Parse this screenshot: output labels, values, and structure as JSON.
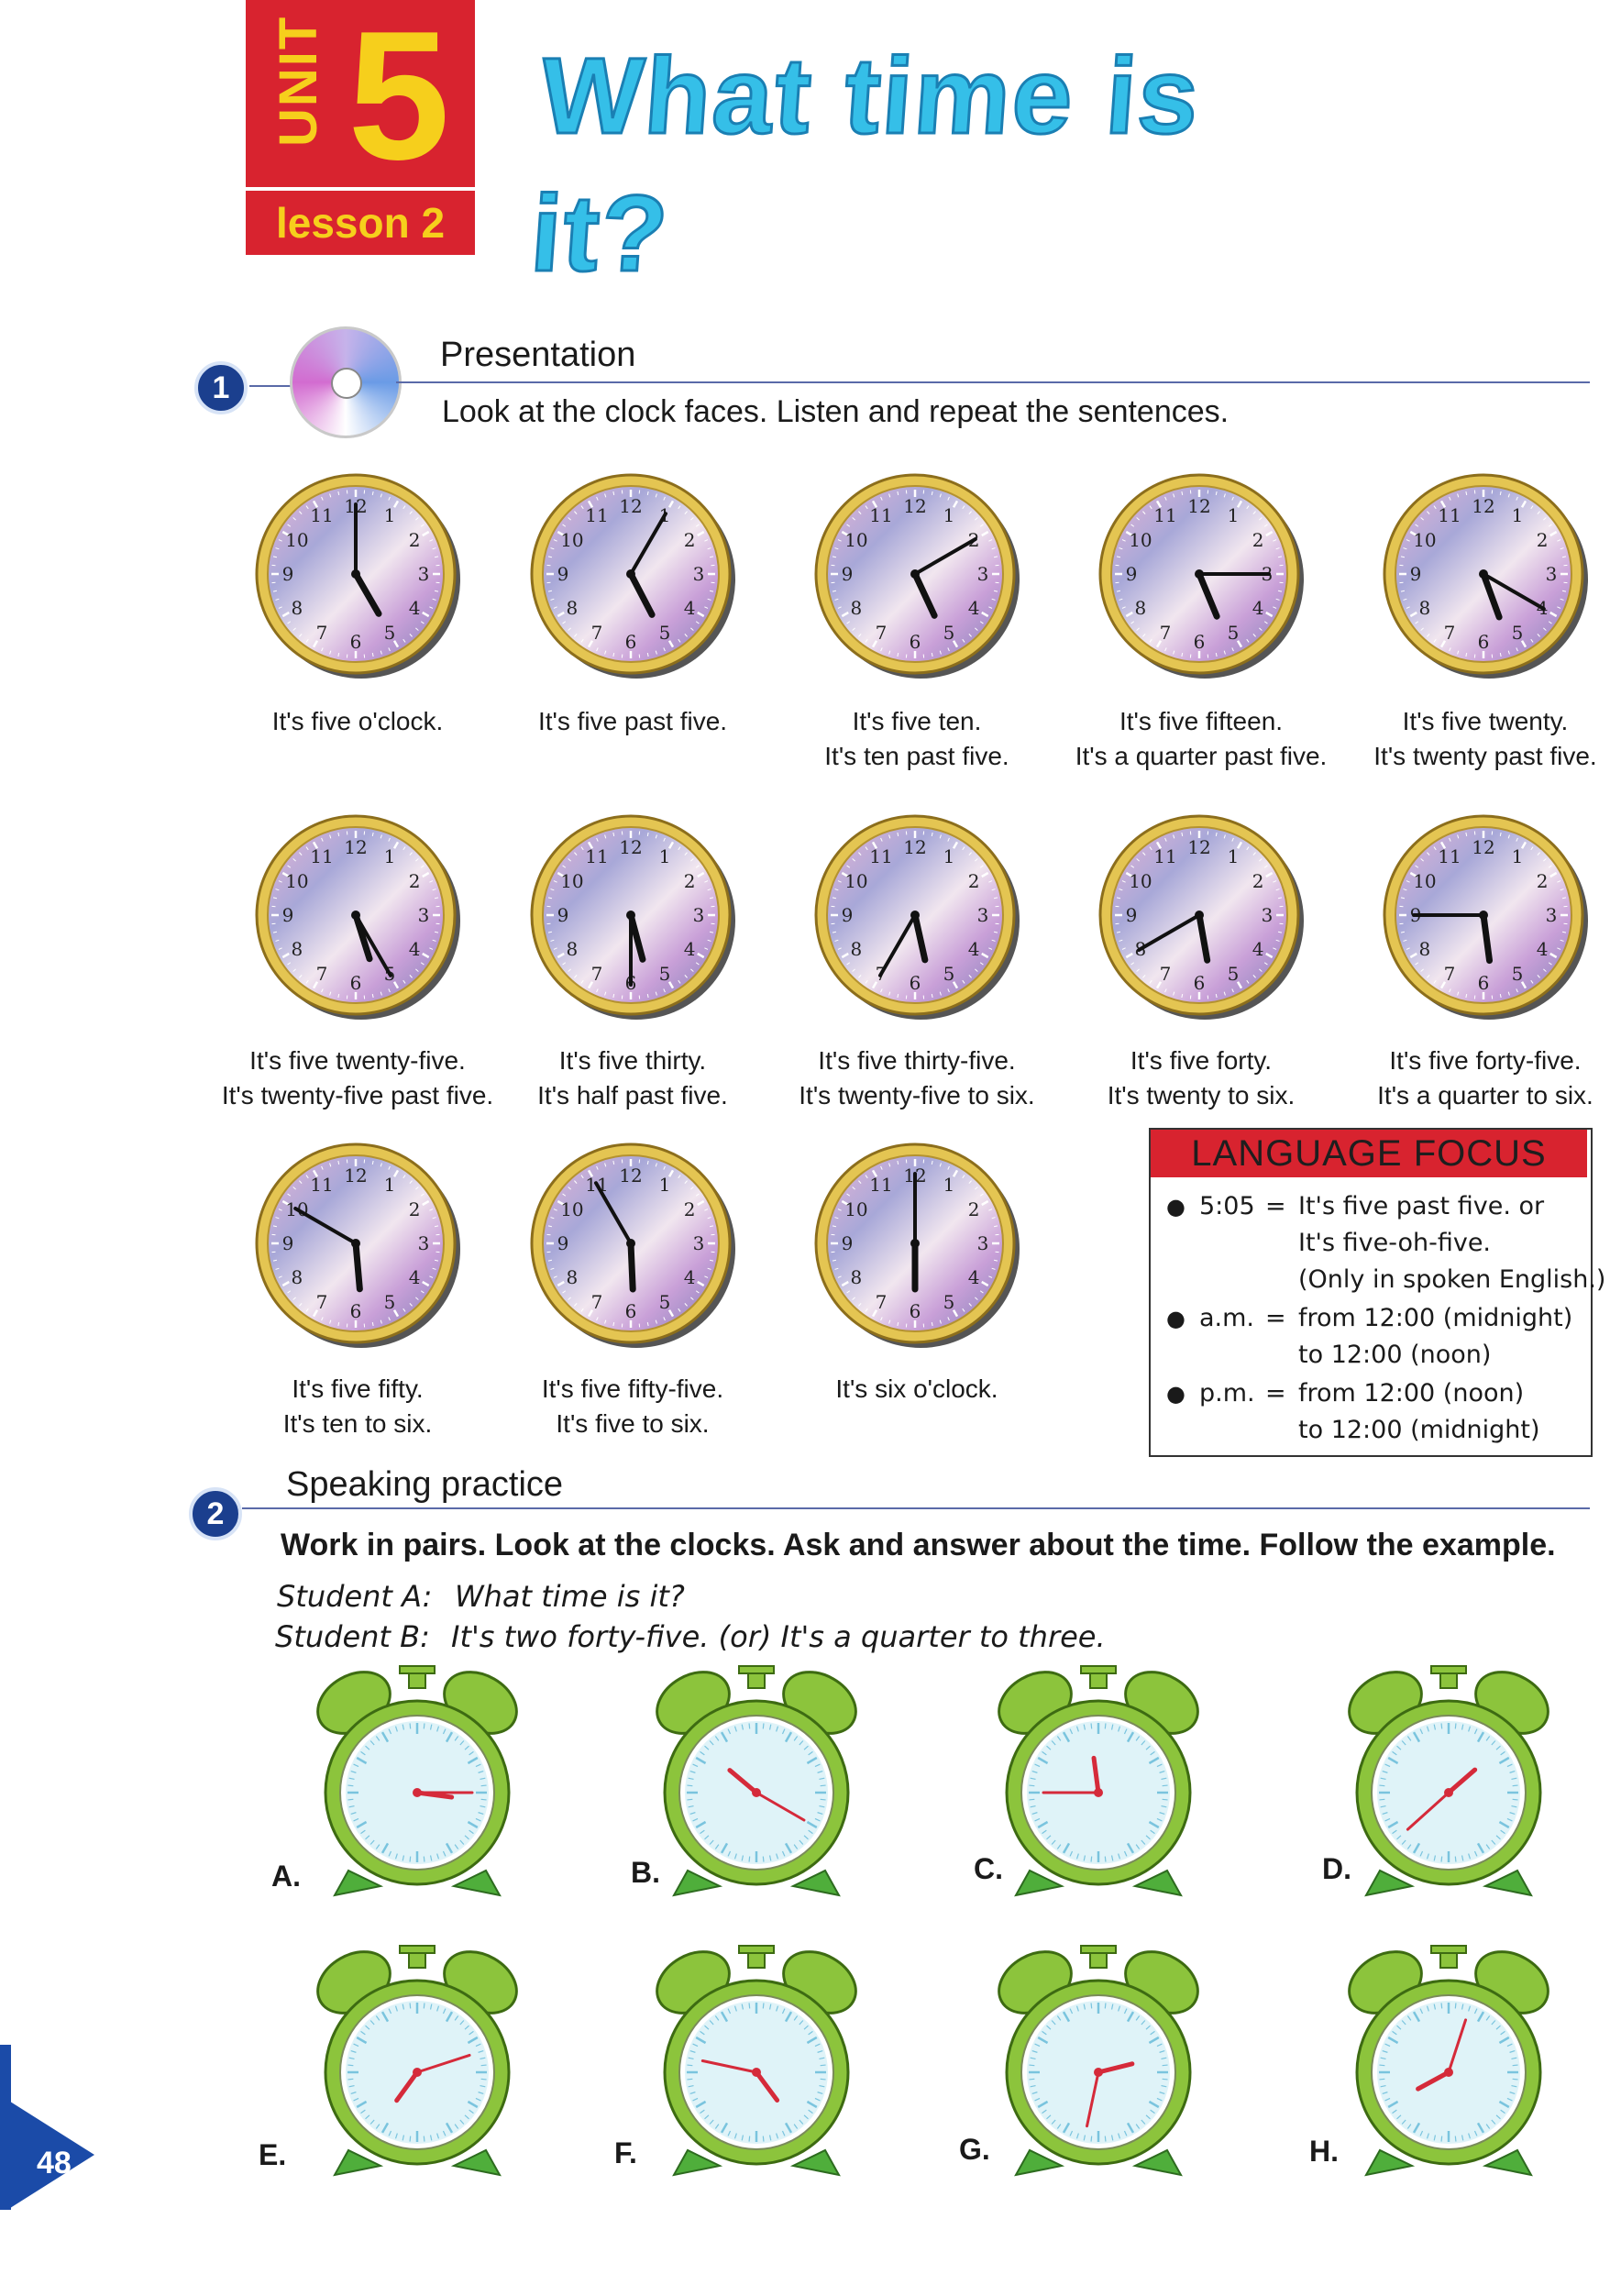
{
  "header": {
    "unit_word": "UNIT",
    "unit_number": "5",
    "lesson": "lesson 2",
    "title": "What time is it?"
  },
  "section1": {
    "number": "1",
    "title": "Presentation",
    "instruction": "Look at the clock faces.  Listen and repeat the sentences.",
    "clocks": [
      {
        "time": "5:00",
        "lines": [
          "It's five o'clock."
        ]
      },
      {
        "time": "5:05",
        "lines": [
          "It's five past five."
        ]
      },
      {
        "time": "5:10",
        "lines": [
          "It's five ten.",
          "It's ten past five."
        ]
      },
      {
        "time": "5:15",
        "lines": [
          "It's five fifteen.",
          "It's a quarter past five."
        ]
      },
      {
        "time": "5:20",
        "lines": [
          "It's five twenty.",
          "It's twenty past five."
        ]
      },
      {
        "time": "5:25",
        "lines": [
          "It's five twenty-five.",
          "It's twenty-five past five."
        ]
      },
      {
        "time": "5:30",
        "lines": [
          "It's five thirty.",
          "It's half past five."
        ]
      },
      {
        "time": "5:35",
        "lines": [
          "It's five thirty-five.",
          "It's twenty-five to six."
        ]
      },
      {
        "time": "5:40",
        "lines": [
          "It's five forty.",
          "It's twenty to six."
        ]
      },
      {
        "time": "5:45",
        "lines": [
          "It's five forty-five.",
          "It's a quarter to six."
        ]
      },
      {
        "time": "5:50",
        "lines": [
          "It's five fifty.",
          "It's ten to six."
        ]
      },
      {
        "time": "5:55",
        "lines": [
          "It's five fifty-five.",
          "It's five to six."
        ]
      },
      {
        "time": "6:00",
        "lines": [
          "It's six o'clock."
        ]
      }
    ]
  },
  "language_focus": {
    "title": "LANGUAGE FOCUS",
    "items": [
      {
        "term": "5:05",
        "eq": "=",
        "lines": [
          "It's five past five. or",
          "It's five-oh-five.",
          "(Only in spoken English.)"
        ]
      },
      {
        "term": "a.m.",
        "eq": "=",
        "lines": [
          "from 12:00 (midnight)",
          "to 12:00 (noon)"
        ]
      },
      {
        "term": "p.m.",
        "eq": "=",
        "lines": [
          "from 12:00 (noon)",
          "to 12:00 (midnight)"
        ]
      }
    ]
  },
  "section2": {
    "number": "2",
    "title": "Speaking practice",
    "instruction": "Work in pairs. Look at the clocks. Ask and answer about the time. Follow the example.",
    "dialog": [
      {
        "speaker": "Student A:",
        "line": "What time is it?"
      },
      {
        "speaker": "Student B:",
        "line": "It's two forty-five. (or) It's a quarter to three."
      }
    ],
    "alarm_clocks": [
      {
        "label": "A.",
        "time": "3:15"
      },
      {
        "label": "B.",
        "time": "10:20"
      },
      {
        "label": "C.",
        "time": "11:45"
      },
      {
        "label": "D.",
        "time": "1:38"
      },
      {
        "label": "E.",
        "time": "7:12"
      },
      {
        "label": "F.",
        "time": "4:47"
      },
      {
        "label": "G.",
        "time": "2:32"
      },
      {
        "label": "H.",
        "time": "8:03"
      }
    ]
  },
  "page_number": "48",
  "colors": {
    "unit_red": "#d8232f",
    "unit_yellow": "#f6cf1c",
    "title_blue": "#35bfe8",
    "section_blue": "#1b3f8e"
  }
}
